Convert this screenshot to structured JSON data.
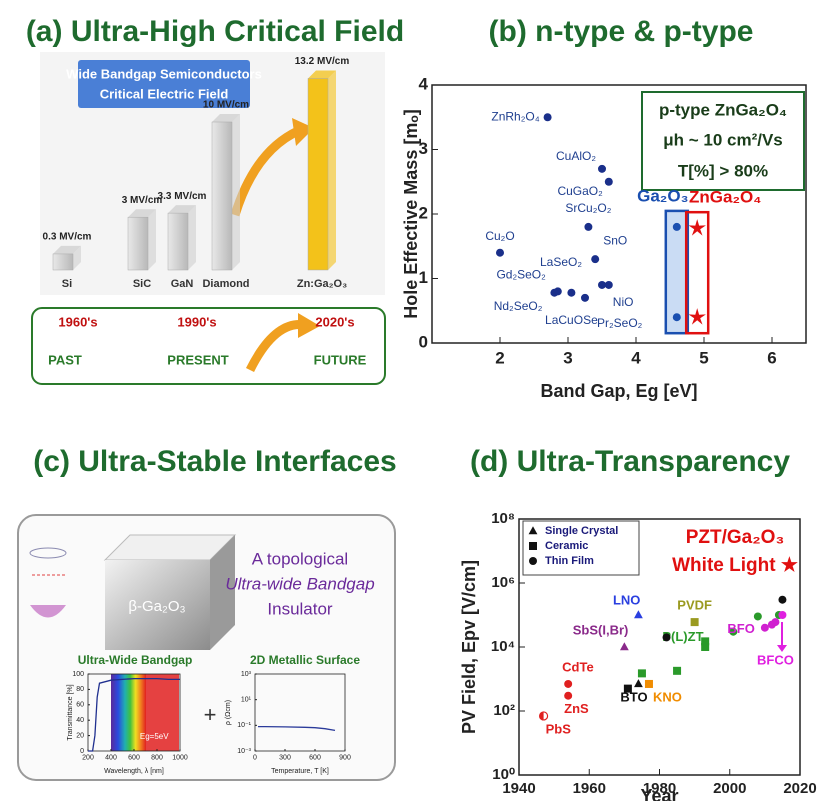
{
  "chart_data": [
    {
      "type": "bar",
      "title": "(a) Ultra-High Critical Field",
      "box_title": [
        "Wide Bandgap Semiconductors",
        "Critical Electric Field"
      ],
      "categories": [
        "Si",
        "SiC",
        "GaN",
        "Diamond",
        "Zn:Ga₂O₃"
      ],
      "values": [
        0.3,
        3,
        3.3,
        10,
        13.2
      ],
      "value_labels": [
        "0.3 MV/cm",
        "3 MV/cm",
        "3.3 MV/cm",
        "10 MV/cm",
        "13.2 MV/cm"
      ],
      "colors": [
        "#cfcfcf",
        "#cfcfcf",
        "#cfcfcf",
        "#cfcfcf",
        "#f3c21a"
      ],
      "timeline": {
        "eras": [
          "1960's",
          "1990's",
          "2020's"
        ],
        "labels": [
          "PAST",
          "PRESENT",
          "FUTURE"
        ]
      }
    },
    {
      "type": "scatter",
      "title": "(b) n-type & p-type",
      "x_label": "Band Gap, Eg [eV]",
      "y_label": "Hole Effective Mass [mₒ]",
      "xlim": [
        1,
        6.5
      ],
      "ylim": [
        0,
        4
      ],
      "xticks": [
        2,
        3,
        4,
        5,
        6
      ],
      "yticks": [
        0,
        1,
        2,
        3,
        4
      ],
      "annotation": [
        "p-type ZnGa₂O₄",
        "μh ~ 10 cm²/Vs",
        "T[%] > 80%"
      ],
      "series": [
        {
          "color": "#1a2f8a",
          "marker": "circle",
          "labels": [
            "ZnRh₂O₄",
            "CuAlO₂",
            "CuGaO₂",
            "SrCu₂O₂",
            "Cu₂O",
            "SnO",
            "LaSeO₂",
            "NiO",
            "Gd₂SeO₂",
            "Nd₂SeO₂",
            "LaCuOSe",
            "Pr₂SeO₂"
          ],
          "x": [
            2.7,
            3.5,
            3.6,
            3.3,
            2.0,
            3.4,
            3.5,
            3.6,
            2.85,
            2.8,
            3.05,
            3.25
          ],
          "values": [
            3.5,
            2.7,
            2.5,
            1.8,
            1.4,
            1.3,
            0.9,
            0.9,
            0.8,
            0.78,
            0.78,
            0.7
          ]
        },
        {
          "name": "Ga₂O₃",
          "color": "#1a4fb0",
          "marker": "circle",
          "x": [
            4.6,
            4.6
          ],
          "values": [
            1.8,
            0.4
          ]
        },
        {
          "name": "ZnGa₂O₄",
          "color": "#e01010",
          "marker": "star",
          "x": [
            4.9,
            4.9
          ],
          "values": [
            1.78,
            0.4
          ]
        }
      ]
    },
    {
      "type": "line",
      "title": "Ultra-Wide Bandgap",
      "x_label": "Wavelength, λ [nm]",
      "y_label": "Transmittance [%]",
      "xlim": [
        200,
        1000
      ],
      "ylim": [
        0,
        100
      ],
      "xticks": [
        200,
        400,
        600,
        800,
        1000
      ],
      "yticks": [
        0,
        20,
        40,
        60,
        80,
        100
      ],
      "annotation": "Eg=5eV",
      "series": [
        {
          "color": "#1f2f8f",
          "x": [
            200,
            240,
            260,
            280,
            300,
            400,
            500,
            600,
            700,
            800,
            900,
            1000
          ],
          "values": [
            0,
            0,
            20,
            70,
            88,
            92,
            93,
            94,
            94,
            94,
            93,
            93
          ]
        }
      ]
    },
    {
      "type": "line",
      "title": "2D Metallic Surface",
      "x_label": "Temperature, T [K]",
      "y_label": "ρ (Ωcm)",
      "xlim": [
        0,
        900
      ],
      "ylim": [
        0.001,
        1000
      ],
      "log_y": true,
      "xticks": [
        0,
        300,
        600,
        900
      ],
      "yticks": [
        {
          "value": 0.001,
          "label": "10⁻³"
        },
        {
          "value": 0.1,
          "label": "10⁻¹"
        },
        {
          "value": 10,
          "label": "10¹"
        },
        {
          "value": 1000,
          "label": "10³"
        }
      ],
      "series": [
        {
          "color": "#2a3a9a",
          "x": [
            30,
            100,
            300,
            500,
            600,
            700,
            800
          ],
          "values": [
            0.08,
            0.08,
            0.075,
            0.07,
            0.065,
            0.055,
            0.04
          ]
        }
      ]
    },
    {
      "type": "scatter",
      "title": "(d) Ultra-Transparency",
      "x_label": "Year",
      "y_label": "PV Field, Epv [V/cm]",
      "xlim": [
        1940,
        2020
      ],
      "ylim": [
        1,
        100000000
      ],
      "log_y": true,
      "xticks": [
        1940,
        1960,
        1980,
        2000,
        2020
      ],
      "yticks": [
        {
          "value": 1,
          "label": "10⁰"
        },
        {
          "value": 100,
          "label": "10²"
        },
        {
          "value": 10000,
          "label": "10⁴"
        },
        {
          "value": 1000000,
          "label": "10⁶"
        },
        {
          "value": 100000000,
          "label": "10⁸"
        }
      ],
      "legend": [
        {
          "label": "Single Crystal",
          "marker": "triangle"
        },
        {
          "label": "Ceramic",
          "marker": "square"
        },
        {
          "label": "Thin Film",
          "marker": "circle"
        }
      ],
      "annotation": [
        "PZT/Ga₂O₃",
        "White Light ★"
      ],
      "series": [
        {
          "label": "PbS",
          "color": "#e02020",
          "marker": "half",
          "x": [
            1947
          ],
          "values": [
            70
          ]
        },
        {
          "label": "CdTe",
          "color": "#e02020",
          "marker": "circle",
          "x": [
            1954
          ],
          "values": [
            700
          ]
        },
        {
          "label": "ZnS",
          "color": "#e02020",
          "marker": "circle",
          "x": [
            1954
          ],
          "values": [
            300
          ]
        },
        {
          "label": "BTO",
          "color": "#111111",
          "marker": "triangle",
          "x": [
            1974
          ],
          "values": [
            700
          ]
        },
        {
          "color": "#111111",
          "marker": "square",
          "x": [
            1971
          ],
          "values": [
            500
          ]
        },
        {
          "label": "KNO",
          "color": "#f08c00",
          "marker": "square",
          "x": [
            1977
          ],
          "values": [
            700
          ]
        },
        {
          "label": "LNO",
          "color": "#2a3fe0",
          "marker": "triangle",
          "x": [
            1974
          ],
          "values": [
            100000
          ]
        },
        {
          "label": "SbS(I,Br)",
          "color": "#8a2a8a",
          "marker": "triangle",
          "x": [
            1970
          ],
          "values": [
            10000
          ]
        },
        {
          "label": "PVDF",
          "color": "#9a9a20",
          "marker": "square",
          "x": [
            1990
          ],
          "values": [
            60000
          ]
        },
        {
          "label": "P(L)ZT",
          "color": "#2a9a2a",
          "marker": "square",
          "x": [
            1975,
            1985,
            1993,
            1993
          ],
          "values": [
            1500,
            1800,
            10000,
            15000
          ]
        },
        {
          "color": "#2a9a2a",
          "marker": "circle",
          "x": [
            2001,
            2008,
            2014
          ],
          "values": [
            30000,
            90000,
            100000
          ]
        },
        {
          "label": "BFO",
          "color": "#d020d0",
          "marker": "circle",
          "x": [
            2010,
            2012,
            2013
          ],
          "values": [
            40000,
            50000,
            60000
          ]
        },
        {
          "label": "BFCO",
          "color": "#e020e0",
          "marker": "circle",
          "x": [
            2015
          ],
          "values": [
            100000
          ]
        },
        {
          "color": "#111111",
          "marker": "circle",
          "x": [
            1982,
            2015
          ],
          "values": [
            20000,
            300000
          ]
        }
      ]
    }
  ],
  "panel_c": {
    "title": "(c) Ultra-Stable Interfaces",
    "material": "β-Ga₂O₃",
    "description": [
      "A topological",
      "Ultra-wide Bandgap",
      "Insulator"
    ],
    "plus": "+"
  }
}
